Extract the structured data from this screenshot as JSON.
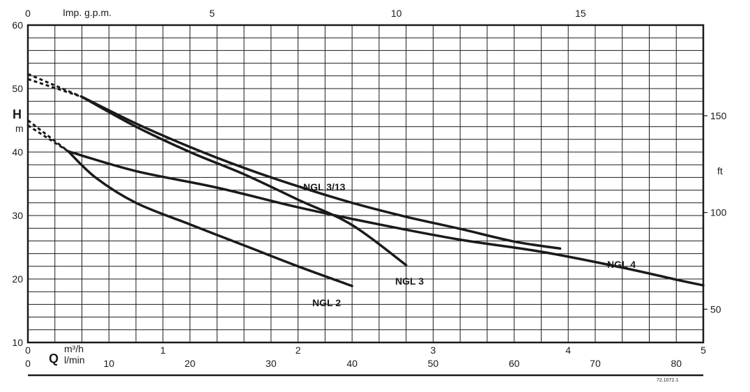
{
  "chart_data": {
    "type": "line",
    "title": "",
    "grid": true,
    "y_left": {
      "label": "H",
      "unit": "m",
      "range": [
        10,
        60
      ],
      "ticks": [
        10,
        20,
        30,
        40,
        50,
        60
      ]
    },
    "y_right": {
      "label": "ft",
      "ticks": [
        50,
        100,
        150
      ]
    },
    "x_axes": [
      {
        "id": "m3h",
        "label": "Q",
        "unit": "m³/h",
        "range": [
          0,
          5
        ],
        "ticks": [
          0,
          1,
          2,
          3,
          4,
          5
        ]
      },
      {
        "id": "lmin",
        "unit": "l/min",
        "ticks": [
          0,
          10,
          20,
          30,
          40,
          50,
          60,
          70,
          80
        ]
      },
      {
        "id": "igpm",
        "unit": "Imp. g.p.m.",
        "ticks": [
          0,
          5,
          10,
          15
        ]
      }
    ],
    "x_unit": "m³/h",
    "y_unit": "m",
    "series": [
      {
        "name": "NGL 2",
        "dashed_start": [
          [
            0,
            44.2
          ],
          [
            0.3,
            40.1
          ]
        ],
        "points": [
          [
            0.3,
            40.1
          ],
          [
            0.5,
            36.0
          ],
          [
            0.8,
            32.0
          ],
          [
            1.2,
            28.6
          ],
          [
            1.6,
            25.3
          ],
          [
            2.0,
            22.0
          ],
          [
            2.4,
            18.9
          ]
        ]
      },
      {
        "name": "NGL 3",
        "dashed_start": [
          [
            0,
            52.3
          ],
          [
            0.4,
            48.7
          ]
        ],
        "points": [
          [
            0.4,
            48.7
          ],
          [
            0.8,
            44.0
          ],
          [
            1.2,
            40.0
          ],
          [
            1.6,
            36.5
          ],
          [
            2.0,
            32.5
          ],
          [
            2.4,
            28.5
          ],
          [
            2.8,
            22.2
          ]
        ]
      },
      {
        "name": "NGL 3/13",
        "dashed_start": [
          [
            0,
            51.5
          ],
          [
            0.4,
            48.7
          ]
        ],
        "points": [
          [
            0.4,
            48.7
          ],
          [
            0.8,
            44.5
          ],
          [
            1.2,
            40.8
          ],
          [
            1.6,
            37.5
          ],
          [
            2.0,
            34.6
          ],
          [
            2.4,
            32.0
          ],
          [
            2.8,
            29.8
          ],
          [
            3.2,
            27.9
          ],
          [
            3.6,
            25.9
          ],
          [
            3.94,
            24.8
          ]
        ]
      },
      {
        "name": "NGL 4",
        "dashed_start": [
          [
            0,
            45.0
          ],
          [
            0.3,
            40.1
          ]
        ],
        "points": [
          [
            0.3,
            40.1
          ],
          [
            0.8,
            37.0
          ],
          [
            1.4,
            34.4
          ],
          [
            2.0,
            31.3
          ],
          [
            2.6,
            28.6
          ],
          [
            3.2,
            26.2
          ],
          [
            3.8,
            24.3
          ],
          [
            4.4,
            21.8
          ],
          [
            4.8,
            19.9
          ],
          [
            5.0,
            19.0
          ]
        ]
      }
    ],
    "annotations": {
      "ngl2": "NGL 2",
      "ngl3": "NGL 3",
      "ngl313": "NGL 3/13",
      "ngl4": "NGL 4"
    },
    "code": "72.1072.1"
  }
}
